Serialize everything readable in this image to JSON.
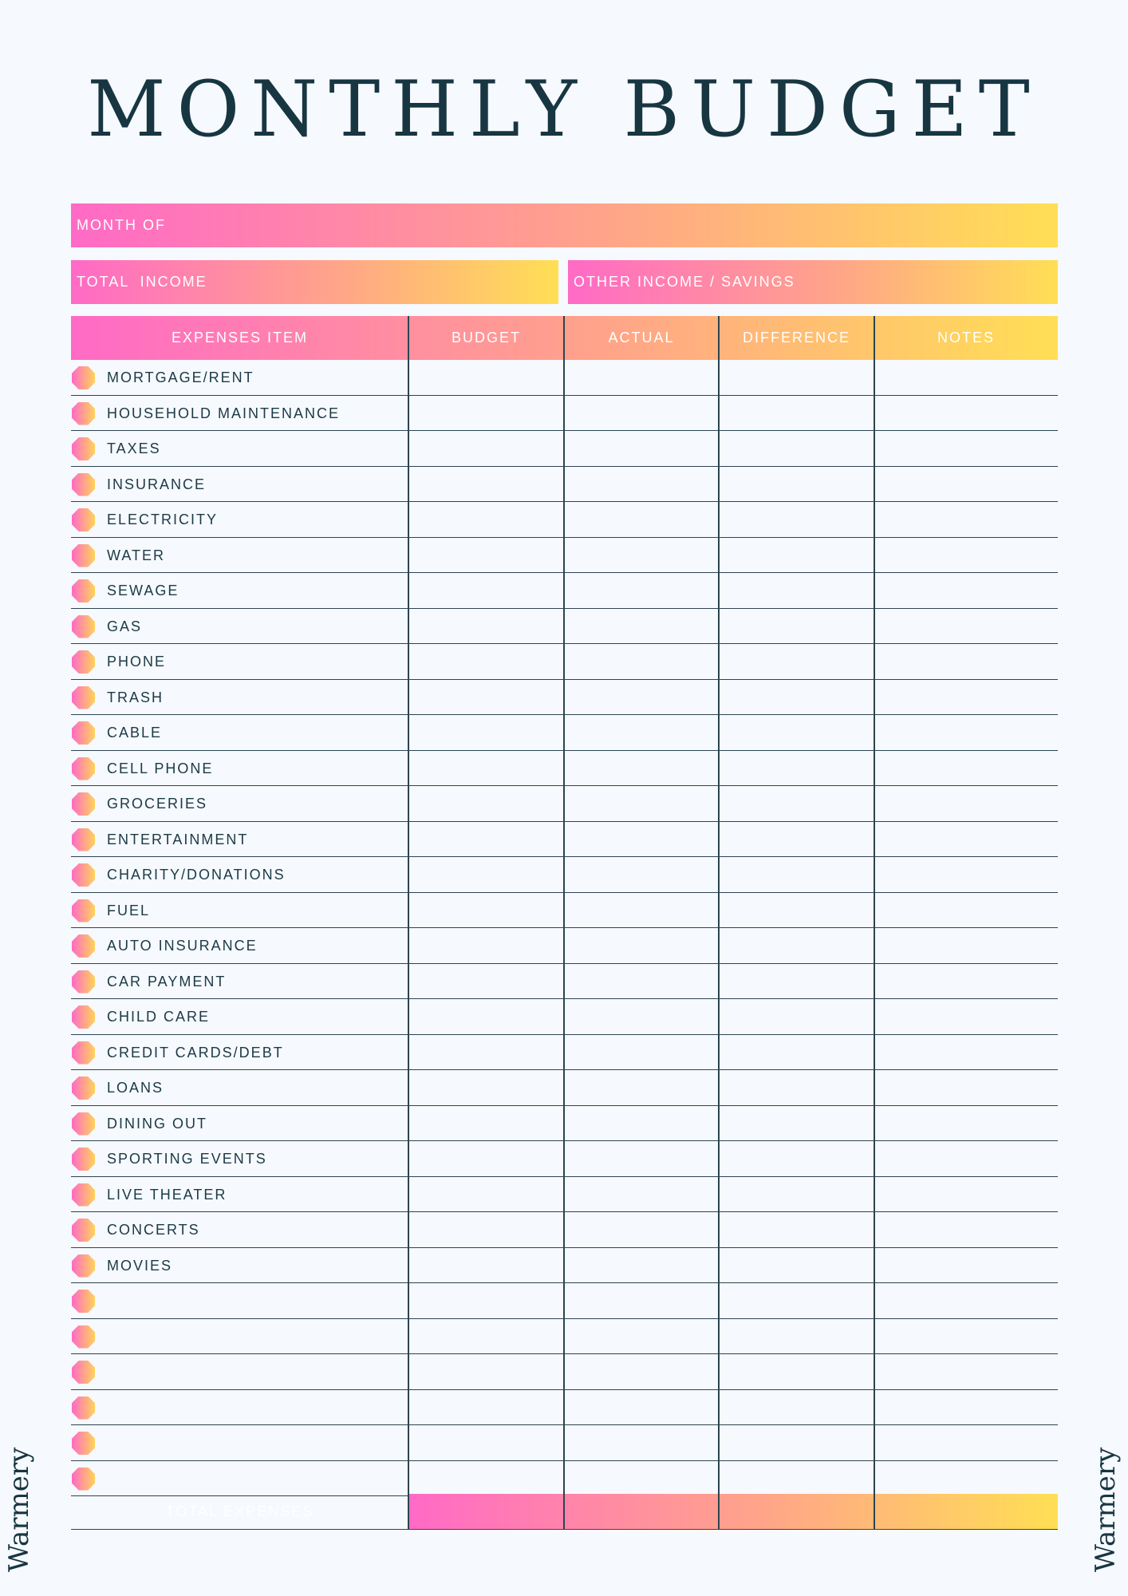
{
  "title": "MONTHLY BUDGET",
  "month_of_label": "MONTH OF",
  "total_income_label": "TOTAL  INCOME",
  "other_income_label": "OTHER INCOME / SAVINGS",
  "columns": [
    "EXPENSES ITEM",
    "BUDGET",
    "ACTUAL",
    "DIFFERENCE",
    "NOTES"
  ],
  "expense_items": [
    "MORTGAGE/RENT",
    "HOUSEHOLD MAINTENANCE",
    "TAXES",
    "INSURANCE",
    "ELECTRICITY",
    "WATER",
    "SEWAGE",
    "GAS",
    "PHONE",
    "TRASH",
    "CABLE",
    "CELL PHONE",
    "GROCERIES",
    "ENTERTAINMENT",
    "CHARITY/DONATIONS",
    "FUEL",
    "AUTO INSURANCE",
    "CAR PAYMENT",
    "CHILD CARE",
    "CREDIT CARDS/DEBT",
    "LOANS",
    "DINING OUT",
    "SPORTING EVENTS",
    "LIVE THEATER",
    "CONCERTS",
    "MOVIES",
    "",
    "",
    "",
    "",
    "",
    ""
  ],
  "total_label": "TOTAL EXPENSES",
  "brand": "Warmery"
}
